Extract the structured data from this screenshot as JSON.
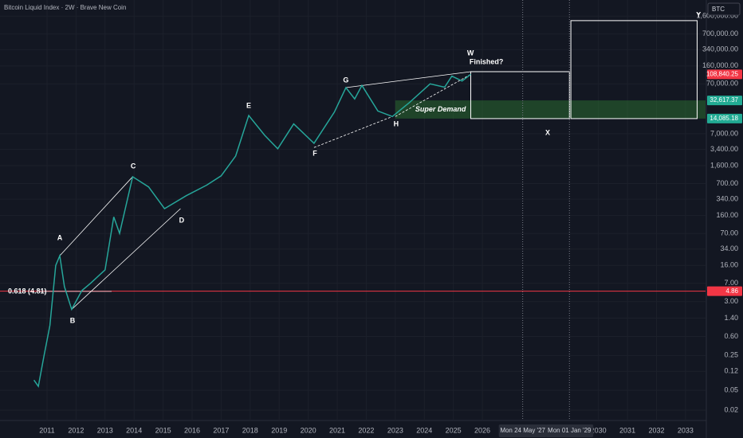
{
  "chart_data": {
    "type": "line",
    "title": "Bitcoin Liquid Index · 2W · Brave New Coin",
    "symbol": "BTC",
    "log_scale": true,
    "grid": true,
    "color": "#26a69a",
    "x": [
      2010.55,
      2010.7,
      2010.9,
      2011.1,
      2011.3,
      2011.44,
      2011.6,
      2011.85,
      2012.2,
      2012.5,
      2013.0,
      2013.3,
      2013.5,
      2013.95,
      2014.5,
      2015.05,
      2015.8,
      2016.5,
      2017.0,
      2017.5,
      2017.95,
      2018.5,
      2018.95,
      2019.5,
      2020.2,
      2020.9,
      2021.3,
      2021.6,
      2021.85,
      2022.4,
      2022.9,
      2023.5,
      2024.2,
      2024.7,
      2024.95,
      2025.3,
      2025.6
    ],
    "values": [
      0.08,
      0.06,
      0.25,
      1,
      16,
      25,
      6,
      2.1,
      5,
      7,
      13,
      150,
      70,
      960,
      600,
      220,
      400,
      650,
      1000,
      2500,
      16300,
      6500,
      3500,
      11000,
      4500,
      19000,
      59000,
      35000,
      65000,
      20000,
      15500,
      30000,
      70000,
      60000,
      100000,
      80000,
      108840.25
    ],
    "xlim": [
      2009.38,
      2033.69
    ],
    "ylim": [
      0.0124,
      3370000
    ],
    "xticks": [
      2011,
      2012,
      2013,
      2014,
      2015,
      2016,
      2017,
      2018,
      2019,
      2020,
      2021,
      2022,
      2023,
      2024,
      2025,
      2026,
      2030,
      2031,
      2032,
      2033
    ],
    "yticks": [
      0.02,
      0.05,
      0.12,
      0.25,
      {
        "value": 0.6,
        "label": "0.60"
      },
      {
        "value": 1.4,
        "label": "1.40"
      },
      {
        "value": 3,
        "label": "3.00"
      },
      {
        "value": 7,
        "label": "7.00"
      },
      {
        "value": 16,
        "label": "16.00"
      },
      {
        "value": 34,
        "label": "34.00"
      },
      {
        "value": 70,
        "label": "70.00"
      },
      {
        "value": 160,
        "label": "160.00"
      },
      {
        "value": 340,
        "label": "340.00"
      },
      {
        "value": 700,
        "label": "700.00"
      },
      {
        "value": 1600,
        "label": "1,600.00"
      },
      {
        "value": 3400,
        "label": "3,400.00"
      },
      {
        "value": 7000,
        "label": "7,000.00"
      },
      {
        "value": 70000,
        "label": "70,000.00"
      },
      {
        "value": 160000,
        "label": "160,000.00"
      },
      {
        "value": 340000,
        "label": "340,000.00"
      },
      {
        "value": 700000,
        "label": "700,000.00"
      },
      {
        "value": 1600000,
        "label": "1,600,000.00"
      }
    ],
    "price_labels": [
      {
        "value": 108840.25,
        "label": "108,840.25",
        "color": "#f23645"
      },
      {
        "value": 32617.37,
        "label": "32,617.37",
        "color": "#22ab94"
      },
      {
        "value": 14085.18,
        "label": "14,085.18",
        "color": "#22ab94"
      },
      {
        "value": 4.86,
        "label": "4.86",
        "color": "#f23645"
      }
    ],
    "hline": {
      "value": 4.86,
      "color": "#f23645"
    },
    "fib": {
      "label": "0.618 (4.81)",
      "value": 4.81
    },
    "zone": {
      "label": "Super Demand",
      "x0": 2023.0,
      "low": 14085.18,
      "high": 32617.37,
      "color": "#2e7d32"
    },
    "boxes": [
      {
        "x0": 2025.6,
        "x1": 2029.0,
        "low": 14085.18,
        "high": 123000
      },
      {
        "x0": 2029.05,
        "x1": 2033.4,
        "low": 14085.18,
        "high": 1300000
      }
    ],
    "vlines": [
      {
        "x": 2027.39,
        "label": "Mon 24 May '27"
      },
      {
        "x": 2029.0,
        "label": "Mon 01 Jan '29"
      }
    ],
    "trendlines": [
      [
        [
          2011.44,
          25
        ],
        [
          2013.95,
          960
        ]
      ],
      [
        [
          2011.85,
          2.1
        ],
        [
          2015.6,
          220
        ]
      ],
      [
        [
          2021.3,
          59000
        ],
        [
          2025.6,
          123000
        ]
      ],
      [
        [
          2020.2,
          3700
        ],
        [
          2022.9,
          15500
        ]
      ],
      [
        [
          2023.0,
          15500
        ],
        [
          2025.6,
          108840.25
        ]
      ]
    ],
    "annotations": [
      {
        "text": "A",
        "x": 2011.44,
        "y": 56
      },
      {
        "text": "B",
        "x": 2011.88,
        "y": 1.23
      },
      {
        "text": "C",
        "x": 2013.97,
        "y": 1545
      },
      {
        "text": "D",
        "x": 2015.64,
        "y": 126
      },
      {
        "text": "E",
        "x": 2017.95,
        "y": 25200
      },
      {
        "text": "F",
        "x": 2020.23,
        "y": 2790
      },
      {
        "text": "G",
        "x": 2021.3,
        "y": 82000
      },
      {
        "text": "H",
        "x": 2023.03,
        "y": 10900
      },
      {
        "text": "W",
        "x": 2025.59,
        "y": 287000
      },
      {
        "text": "Finished?",
        "x": 2026.14,
        "y": 191000
      },
      {
        "text": "X",
        "x": 2028.25,
        "y": 7260
      },
      {
        "text": "Y",
        "x": 2033.45,
        "y": 1670000
      }
    ]
  }
}
